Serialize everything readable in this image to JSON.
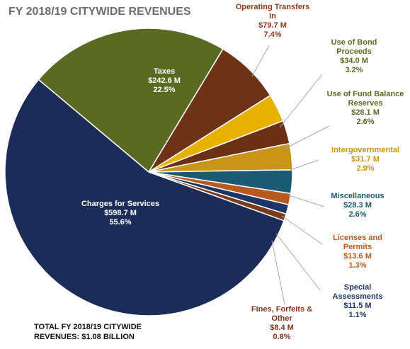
{
  "chart_data": {
    "type": "pie",
    "title": "FY 2018/19 CITYWIDE REVENUES",
    "footnote": "TOTAL FY 2018/19 CITYWIDE REVENUES: $1.08 BILLION",
    "categories": [
      "Taxes",
      "Operating Transfers In",
      "Use of Bond Proceeds",
      "Use of Fund Balance Reserves",
      "Intergovernmental",
      "Miscellaneous",
      "Licenses and Permits",
      "Special Assessments",
      "Fines, Forfeits & Other",
      "Charges for Services"
    ],
    "values": [
      242.6,
      79.7,
      34.0,
      28.1,
      31.7,
      28.3,
      13.6,
      11.5,
      8.4,
      598.7
    ],
    "value_labels": [
      "$242.6 M",
      "$79.7 M",
      "$34.0 M",
      "$28.1 M",
      "$31.7 M",
      "$28.3 M",
      "$13.6 M",
      "$11.5 M",
      "$8.4 M",
      "$598.7 M"
    ],
    "percent_labels": [
      "22.5%",
      "7.4%",
      "3.2%",
      "2.6%",
      "2.9%",
      "2.6%",
      "1.3%",
      "1.1%",
      "0.8%",
      "55.6%"
    ],
    "colors": [
      "#5b6a22",
      "#6e3316",
      "#e7b100",
      "#6b3117",
      "#c99418",
      "#1b5a72",
      "#b8591f",
      "#1f3566",
      "#7a3a1b",
      "#1c2c59"
    ],
    "label_colors": [
      "#ffffff",
      "#8b3a1a",
      "#5b6a22",
      "#5b6a22",
      "#c99418",
      "#1b5a72",
      "#b8591f",
      "#1f3566",
      "#7a3a1b",
      "#ffffff"
    ]
  }
}
